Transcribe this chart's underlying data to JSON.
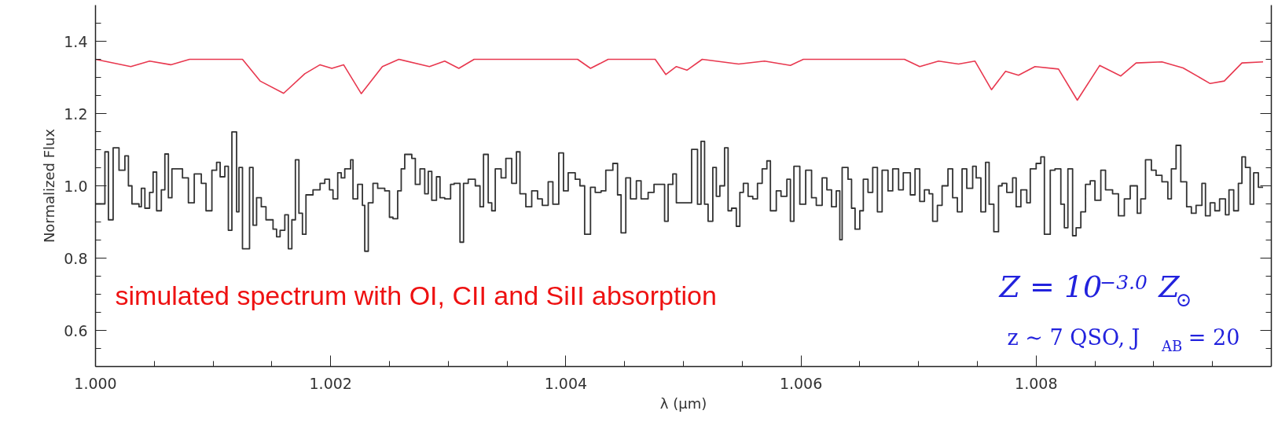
{
  "chart_data": {
    "type": "line",
    "xlabel": "λ (μm)",
    "ylabel": "Normalized Flux",
    "xlim": [
      1.0,
      1.01
    ],
    "ylim": [
      0.5,
      1.5
    ],
    "xticks": [
      {
        "value": 1.0,
        "label": "1.000"
      },
      {
        "value": 1.0005,
        "label": null
      },
      {
        "value": 1.001,
        "label": null
      },
      {
        "value": 1.0015,
        "label": null
      },
      {
        "value": 1.002,
        "label": "1.002"
      },
      {
        "value": 1.0025,
        "label": null
      },
      {
        "value": 1.003,
        "label": null
      },
      {
        "value": 1.0035,
        "label": null
      },
      {
        "value": 1.004,
        "label": "1.004"
      },
      {
        "value": 1.0045,
        "label": null
      },
      {
        "value": 1.005,
        "label": null
      },
      {
        "value": 1.0055,
        "label": null
      },
      {
        "value": 1.006,
        "label": "1.006"
      },
      {
        "value": 1.0065,
        "label": null
      },
      {
        "value": 1.007,
        "label": null
      },
      {
        "value": 1.0075,
        "label": null
      },
      {
        "value": 1.008,
        "label": "1.008"
      },
      {
        "value": 1.0085,
        "label": null
      },
      {
        "value": 1.009,
        "label": null
      },
      {
        "value": 1.0095,
        "label": null
      }
    ],
    "yticks": [
      {
        "value": 0.55,
        "label": null
      },
      {
        "value": 0.6,
        "label": "0.6"
      },
      {
        "value": 0.65,
        "label": null
      },
      {
        "value": 0.7,
        "label": null
      },
      {
        "value": 0.75,
        "label": null
      },
      {
        "value": 0.8,
        "label": "0.8"
      },
      {
        "value": 0.85,
        "label": null
      },
      {
        "value": 0.9,
        "label": null
      },
      {
        "value": 0.95,
        "label": null
      },
      {
        "value": 1.0,
        "label": "1.0"
      },
      {
        "value": 1.05,
        "label": null
      },
      {
        "value": 1.1,
        "label": null
      },
      {
        "value": 1.15,
        "label": null
      },
      {
        "value": 1.2,
        "label": "1.2"
      },
      {
        "value": 1.25,
        "label": null
      },
      {
        "value": 1.3,
        "label": null
      },
      {
        "value": 1.35,
        "label": null
      },
      {
        "value": 1.4,
        "label": "1.4"
      },
      {
        "value": 1.45,
        "label": null
      }
    ],
    "grid": false,
    "annotations": [
      "simulated spectrum with OI, CII and SiII absorption",
      "Z = 10$^{−3.0}$ Z$_{⊙}$",
      "z ∼ 7 QSO,  J$_{AB}$ = 20"
    ],
    "series": [
      {
        "color": "#e8384f",
        "x": [
          1.0,
          1.0003,
          1.00046,
          1.00064,
          1.0008,
          1.00125,
          1.0014,
          1.0016,
          1.00178,
          1.00191,
          1.00201,
          1.00211,
          1.00226,
          1.00244,
          1.00258,
          1.00284,
          1.00297,
          1.00309,
          1.00322,
          1.0041,
          1.00421,
          1.00436,
          1.00476,
          1.00485,
          1.00494,
          1.00503,
          1.00516,
          1.00547,
          1.00569,
          1.00591,
          1.00602,
          1.00688,
          1.00701,
          1.00717,
          1.00734,
          1.00748,
          1.00762,
          1.00774,
          1.00785,
          1.00799,
          1.00819,
          1.00835,
          1.00854,
          1.00872,
          1.00885,
          1.00907,
          1.00925,
          1.00948,
          1.0096,
          1.00975,
          1.00993
        ],
        "values": [
          1.35,
          1.33,
          1.345,
          1.335,
          1.35,
          1.35,
          1.29,
          1.256,
          1.31,
          1.335,
          1.325,
          1.335,
          1.255,
          1.33,
          1.35,
          1.33,
          1.345,
          1.325,
          1.35,
          1.35,
          1.325,
          1.35,
          1.35,
          1.308,
          1.33,
          1.32,
          1.35,
          1.337,
          1.345,
          1.333,
          1.35,
          1.35,
          1.33,
          1.345,
          1.337,
          1.345,
          1.266,
          1.317,
          1.306,
          1.33,
          1.323,
          1.237,
          1.333,
          1.304,
          1.34,
          1.343,
          1.326,
          1.283,
          1.29,
          1.34,
          1.343
        ]
      },
      {
        "type": "step",
        "color": "#333333",
        "x": [
          1.0,
          1.00008,
          1.00011,
          1.00015,
          1.0002,
          1.00025,
          1.00028,
          1.00031,
          1.00037,
          1.00039,
          1.00042,
          1.00046,
          1.00049,
          1.00052,
          1.00056,
          1.00059,
          1.00062,
          1.00065,
          1.00074,
          1.00079,
          1.00084,
          1.0009,
          1.00094,
          1.00099,
          1.00103,
          1.00106,
          1.0011,
          1.00113,
          1.00116,
          1.0012,
          1.00122,
          1.00125,
          1.00131,
          1.00134,
          1.00137,
          1.00141,
          1.00145,
          1.00151,
          1.00154,
          1.00157,
          1.00161,
          1.00164,
          1.00167,
          1.0017,
          1.00173,
          1.00176,
          1.00179,
          1.00185,
          1.00191,
          1.00195,
          1.00199,
          1.00202,
          1.00206,
          1.00209,
          1.00212,
          1.00217,
          1.00219,
          1.00223,
          1.00227,
          1.00229,
          1.00232,
          1.00236,
          1.0024,
          1.00246,
          1.0025,
          1.00253,
          1.00257,
          1.0026,
          1.00263,
          1.00269,
          1.00272,
          1.00276,
          1.0028,
          1.00283,
          1.00286,
          1.0029,
          1.00293,
          1.00297,
          1.00302,
          1.00305,
          1.0031,
          1.00313,
          1.00317,
          1.00323,
          1.00327,
          1.0033,
          1.00334,
          1.00337,
          1.0034,
          1.00345,
          1.00349,
          1.00354,
          1.00358,
          1.00361,
          1.00366,
          1.00371,
          1.00376,
          1.0038,
          1.00385,
          1.00389,
          1.00394,
          1.00398,
          1.00402,
          1.00408,
          1.00412,
          1.00416,
          1.00421,
          1.00425,
          1.0043,
          1.00434,
          1.0044,
          1.00444,
          1.00447,
          1.00451,
          1.00455,
          1.0046,
          1.00464,
          1.0047,
          1.00475,
          1.00481,
          1.00484,
          1.00487,
          1.00491,
          1.00494,
          1.005,
          1.00507,
          1.00512,
          1.00515,
          1.00518,
          1.00521,
          1.00525,
          1.00528,
          1.00531,
          1.00535,
          1.00538,
          1.00541,
          1.00545,
          1.00548,
          1.00551,
          1.00555,
          1.00559,
          1.00563,
          1.00567,
          1.00571,
          1.00574,
          1.00579,
          1.00583,
          1.00588,
          1.00591,
          1.00594,
          1.00599,
          1.00604,
          1.00609,
          1.00613,
          1.00618,
          1.00622,
          1.00626,
          1.0063,
          1.00633,
          1.00635,
          1.0064,
          1.00643,
          1.00646,
          1.0065,
          1.00653,
          1.00657,
          1.00661,
          1.00665,
          1.00669,
          1.00674,
          1.00678,
          1.00683,
          1.00687,
          1.00693,
          1.00697,
          1.00701,
          1.00705,
          1.00709,
          1.00712,
          1.00716,
          1.0072,
          1.00725,
          1.00729,
          1.00733,
          1.00737,
          1.00741,
          1.00746,
          1.00749,
          1.00753,
          1.00757,
          1.0076,
          1.00764,
          1.00768,
          1.00771,
          1.00775,
          1.0078,
          1.00783,
          1.00787,
          1.00792,
          1.00795,
          1.008,
          1.00804,
          1.00807,
          1.00812,
          1.00816,
          1.00821,
          1.00824,
          1.00827,
          1.00831,
          1.00834,
          1.00838,
          1.00842,
          1.00846,
          1.0085,
          1.00855,
          1.00859,
          1.00865,
          1.0087,
          1.00875,
          1.0088,
          1.00886,
          1.00889,
          1.00893,
          1.00898,
          1.00902,
          1.00907,
          1.00912,
          1.00915,
          1.00919,
          1.00923,
          1.00928,
          1.00932,
          1.00936,
          1.00941,
          1.00944,
          1.00948,
          1.00952,
          1.00956,
          1.00961,
          1.00964,
          1.00968,
          1.00972,
          1.00975,
          1.00978,
          1.00982,
          1.00985,
          1.00989,
          1.00993
        ],
        "values": [
          0.95,
          1.094,
          0.906,
          1.105,
          1.043,
          1.083,
          1.0,
          0.95,
          0.942,
          0.993,
          0.938,
          0.982,
          1.038,
          0.931,
          0.989,
          1.088,
          0.967,
          1.047,
          1.022,
          0.953,
          1.033,
          1.007,
          0.931,
          1.043,
          1.065,
          1.025,
          1.054,
          0.877,
          1.149,
          0.928,
          1.051,
          0.826,
          1.051,
          0.891,
          0.967,
          0.942,
          0.906,
          0.88,
          0.859,
          0.877,
          0.92,
          0.826,
          0.906,
          1.072,
          0.924,
          0.866,
          0.975,
          0.989,
          1.007,
          1.018,
          0.989,
          0.964,
          1.036,
          1.022,
          1.047,
          1.072,
          0.964,
          1.004,
          0.946,
          0.819,
          0.953,
          1.007,
          0.993,
          0.986,
          0.913,
          0.909,
          0.986,
          1.047,
          1.087,
          1.076,
          1.004,
          1.047,
          0.978,
          1.04,
          0.96,
          1.025,
          0.967,
          0.964,
          1.004,
          1.007,
          0.844,
          1.007,
          1.018,
          1.0,
          0.942,
          1.087,
          0.953,
          0.931,
          1.047,
          1.022,
          1.076,
          1.007,
          1.094,
          0.978,
          0.942,
          0.986,
          0.964,
          0.946,
          1.011,
          0.949,
          1.091,
          0.986,
          1.036,
          1.018,
          1.0,
          0.866,
          0.996,
          0.982,
          0.986,
          1.043,
          1.062,
          0.975,
          0.87,
          1.022,
          0.964,
          1.014,
          0.964,
          0.982,
          1.004,
          1.004,
          0.902,
          1.004,
          1.033,
          0.953,
          0.953,
          1.101,
          0.949,
          1.123,
          0.949,
          0.902,
          1.051,
          0.971,
          1.0,
          1.105,
          0.931,
          0.938,
          0.888,
          0.982,
          1.007,
          0.971,
          0.964,
          1.007,
          1.047,
          1.069,
          0.931,
          0.986,
          0.971,
          1.018,
          0.902,
          1.054,
          0.949,
          1.043,
          0.967,
          0.946,
          1.022,
          0.989,
          0.942,
          0.986,
          0.851,
          1.051,
          1.018,
          0.938,
          0.88,
          0.931,
          1.018,
          0.982,
          1.051,
          0.928,
          1.043,
          0.986,
          1.047,
          0.989,
          1.036,
          0.975,
          1.047,
          0.957,
          0.989,
          0.978,
          0.902,
          0.946,
          1.0,
          1.047,
          0.967,
          0.928,
          1.047,
          0.993,
          1.054,
          1.022,
          0.928,
          1.065,
          0.949,
          0.873,
          1.0,
          1.007,
          0.982,
          1.022,
          0.942,
          0.989,
          0.953,
          1.047,
          1.062,
          1.08,
          0.866,
          1.043,
          1.047,
          0.949,
          0.884,
          1.047,
          0.862,
          0.884,
          0.928,
          1.004,
          1.014,
          0.96,
          1.043,
          0.989,
          0.978,
          0.917,
          0.964,
          1.0,
          0.924,
          0.964,
          1.072,
          1.043,
          1.029,
          1.011,
          0.964,
          1.047,
          1.112,
          1.011,
          0.942,
          0.924,
          0.946,
          1.007,
          0.917,
          0.953,
          0.931,
          0.964,
          0.92,
          0.989,
          0.931,
          1.007,
          1.08,
          1.051,
          0.949,
          1.036,
          0.996,
          0.996
        ]
      }
    ]
  }
}
